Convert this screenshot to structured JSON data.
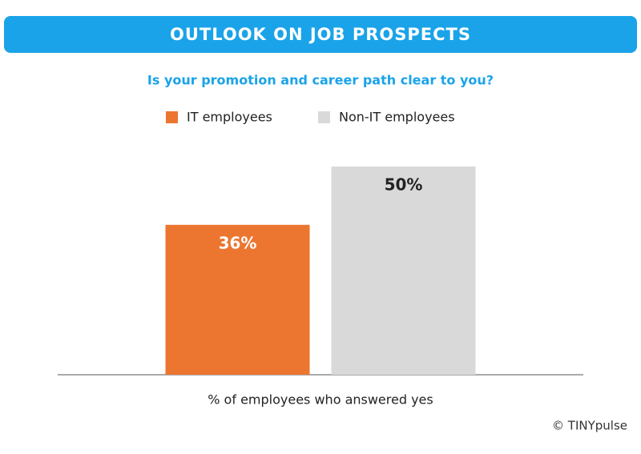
{
  "chart_data": {
    "type": "bar",
    "title": "OUTLOOK ON JOB PROSPECTS",
    "subtitle": "Is your promotion and career path clear to you?",
    "x_label": "% of employees who answered yes",
    "credit": "© TINYpulse",
    "categories": [
      null
    ],
    "series": [
      {
        "name": "IT employees",
        "color": "#ec7630",
        "label_color": "#ffffff",
        "values": [
          36
        ],
        "value_labels": [
          "36%"
        ]
      },
      {
        "name": "Non-IT employees",
        "color": "#d9d9d9",
        "label_color": "#222222",
        "values": [
          50
        ],
        "value_labels": [
          "50%"
        ]
      }
    ],
    "ylim": [
      0,
      55
    ],
    "header_color": "#1aa3e8"
  }
}
